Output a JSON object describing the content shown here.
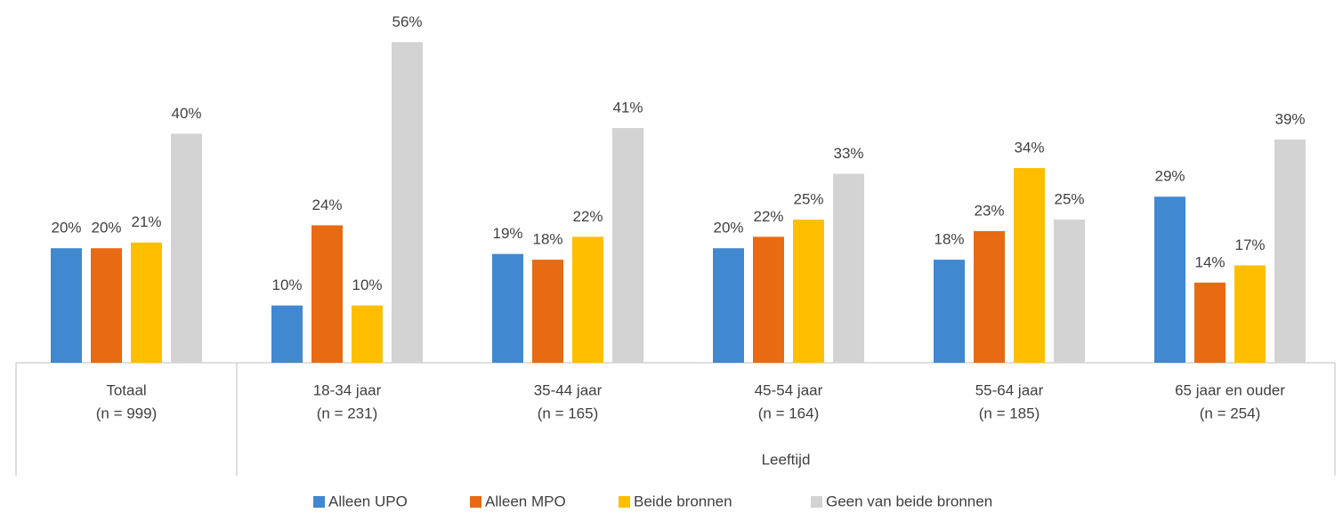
{
  "chart_data": {
    "type": "bar",
    "categories": [
      "Totaal",
      "18-34 jaar",
      "35-44 jaar",
      "45-54 jaar",
      "55-64 jaar",
      "65 jaar en ouder"
    ],
    "category_notes": [
      "(n = 999)",
      "(n = 231)",
      "(n = 165)",
      "(n = 164)",
      "(n = 185)",
      "(n = 254)"
    ],
    "group_label": "Leeftijd",
    "legend": "bottom",
    "series": [
      {
        "name": "Alleen UPO",
        "color": "#4088d0",
        "values": [
          20,
          10,
          19,
          20,
          18,
          29
        ],
        "value_labels": [
          "20%",
          "10%",
          "19%",
          "20%",
          "18%",
          "29%"
        ]
      },
      {
        "name": "Alleen MPO",
        "color": "#e86a12",
        "values": [
          20,
          24,
          18,
          22,
          23,
          14
        ],
        "value_labels": [
          "20%",
          "24%",
          "18%",
          "22%",
          "23%",
          "14%"
        ]
      },
      {
        "name": "Beide bronnen",
        "color": "#ffbf00",
        "values": [
          21,
          10,
          22,
          25,
          34,
          17
        ],
        "value_labels": [
          "21%",
          "10%",
          "22%",
          "25%",
          "34%",
          "17%"
        ]
      },
      {
        "name": "Geen van beide bronnen",
        "color": "#d3d3d3",
        "values": [
          40,
          56,
          41,
          33,
          25,
          39
        ],
        "value_labels": [
          "40%",
          "56%",
          "41%",
          "33%",
          "25%",
          "39%"
        ]
      }
    ]
  }
}
